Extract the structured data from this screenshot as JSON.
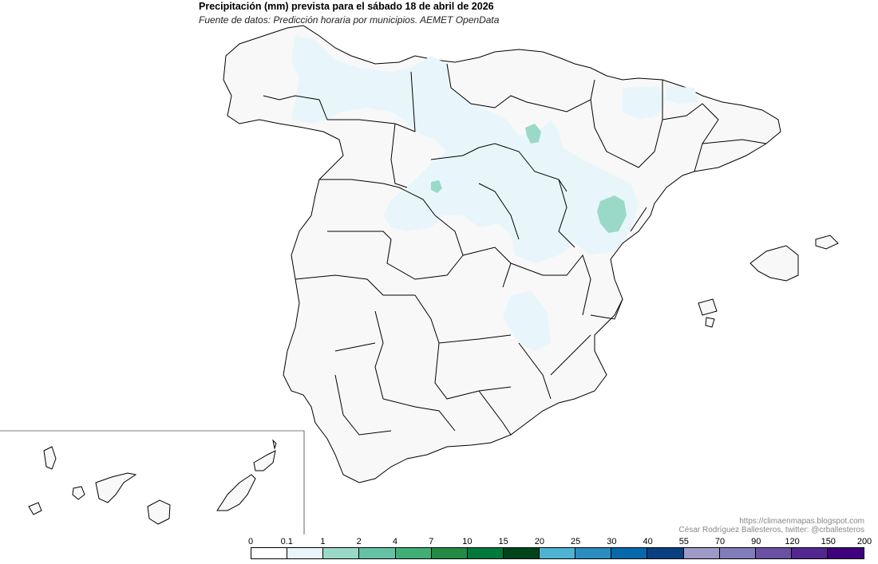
{
  "header": {
    "title": "Precipitación (mm) prevista para el sábado 18 de abril de 2026",
    "subtitle": "Fuente de datos: Predicción horaria por municipios. AEMET OpenData"
  },
  "credits": {
    "url": "https://climaenmapas.blogspot.com",
    "author": "César Rodríguez Ballesteros, twitter: @crballesteros"
  },
  "legend": {
    "ticks": [
      "0",
      "0.1",
      "1",
      "2",
      "4",
      "7",
      "10",
      "15",
      "20",
      "25",
      "30",
      "40",
      "55",
      "70",
      "90",
      "120",
      "150",
      "200"
    ],
    "colors": [
      "#ffffff",
      "#e8f6fb",
      "#9ad9c8",
      "#66c2a4",
      "#41ae76",
      "#238b45",
      "#00793a",
      "#00441b",
      "#4eb3d3",
      "#2b8cbe",
      "#0868ac",
      "#084081",
      "#9e9ac8",
      "#807dba",
      "#6a51a3",
      "#54278f",
      "#3f007d"
    ]
  },
  "map_colors": {
    "land": "#f8f8f8",
    "light_rain": "#e8f6fb",
    "moderate_rain": "#9ad9c8",
    "border": "#000000"
  }
}
